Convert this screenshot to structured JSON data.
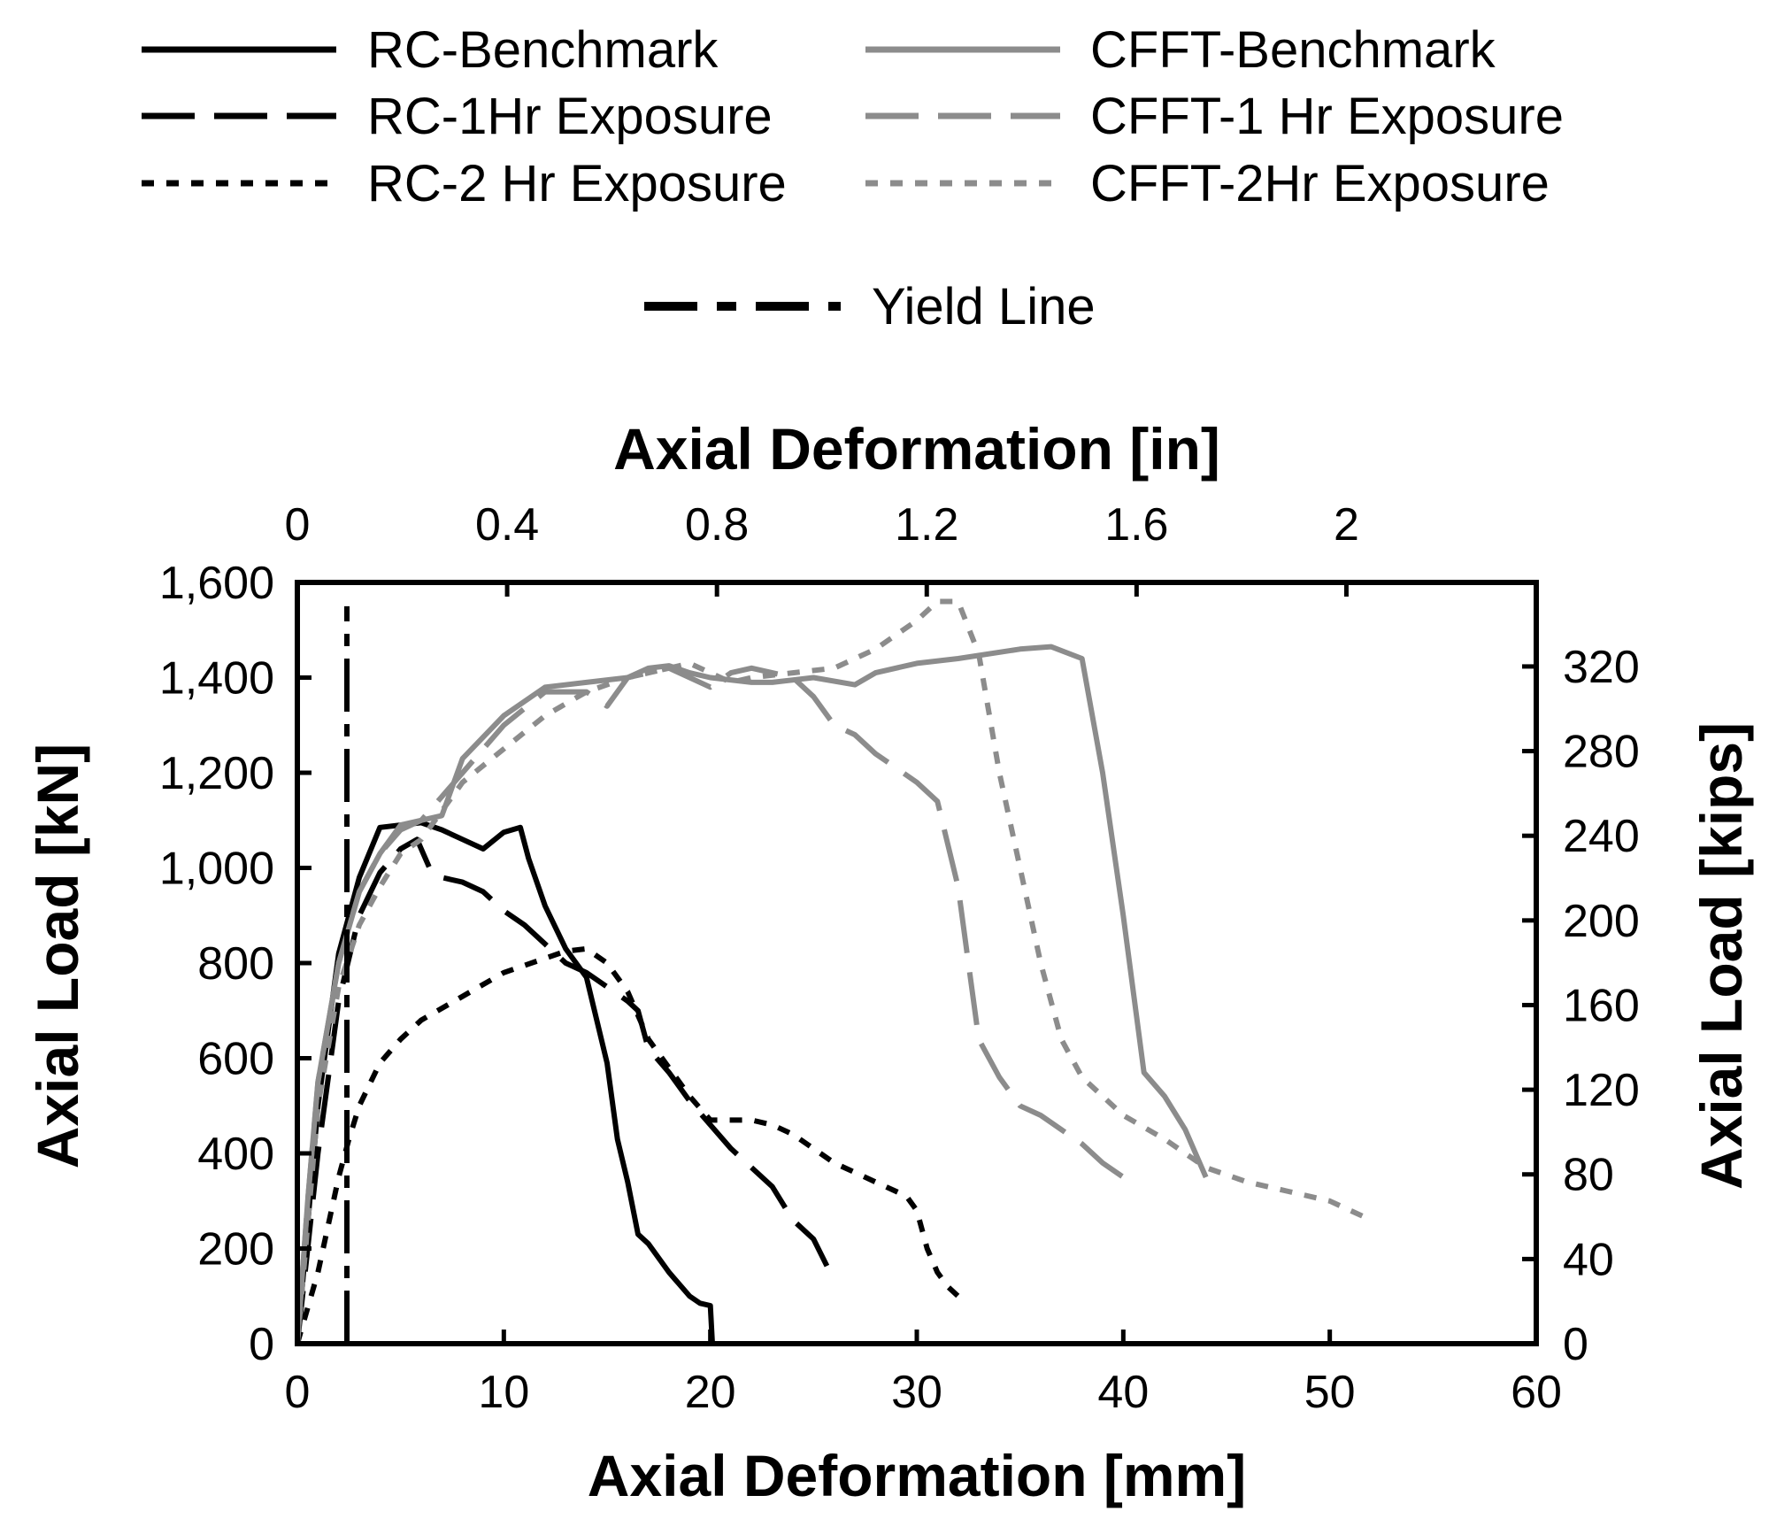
{
  "chart_data": {
    "type": "line",
    "xlabel": "Axial Deformation [mm]",
    "ylabel": "Axial Load [kN]",
    "x2label": "Axial Deformation [in]",
    "y2label": "Axial Load [kips]",
    "xlim": [
      0,
      60
    ],
    "ylim": [
      0,
      1600
    ],
    "x2lim": [
      0,
      2.362
    ],
    "y2lim": [
      0,
      359.7
    ],
    "xticks": [
      0,
      10,
      20,
      30,
      40,
      50,
      60
    ],
    "xtick_labels": [
      "0",
      "10",
      "20",
      "30",
      "40",
      "50",
      "60"
    ],
    "yticks": [
      0,
      200,
      400,
      600,
      800,
      1000,
      1200,
      1400,
      1600
    ],
    "ytick_labels": [
      "0",
      "200",
      "400",
      "600",
      "800",
      "1,000",
      "1,200",
      "1,400",
      "1,600"
    ],
    "x2ticks": [
      0,
      0.4,
      0.8,
      1.2,
      1.6,
      2
    ],
    "x2tick_labels": [
      "0",
      "0.4",
      "0.8",
      "1.2",
      "1.6",
      "2"
    ],
    "y2ticks": [
      0,
      40,
      80,
      120,
      160,
      200,
      240,
      280,
      320
    ],
    "y2tick_labels": [
      "0",
      "40",
      "80",
      "120",
      "160",
      "200",
      "240",
      "280",
      "320"
    ],
    "colors": {
      "rc": "#000000",
      "cfft": "#8c8c8c"
    },
    "series": [
      {
        "name": "RC-Benchmark",
        "color": "rc",
        "style": "solid",
        "x": [
          0,
          0.5,
          1,
          2,
          3,
          4,
          6,
          7,
          8,
          9,
          10,
          10.8,
          11.2,
          12,
          13,
          14,
          15,
          15.5,
          16,
          16.5,
          17,
          18,
          19,
          19.5,
          20,
          20.1
        ],
        "y": [
          0,
          250,
          500,
          820,
          980,
          1085,
          1095,
          1080,
          1060,
          1040,
          1075,
          1085,
          1020,
          920,
          830,
          770,
          590,
          430,
          340,
          230,
          210,
          150,
          100,
          85,
          80,
          0
        ]
      },
      {
        "name": "RC-1Hr Exposure",
        "color": "rc",
        "style": "longdash",
        "x": [
          0,
          0.5,
          1,
          2,
          3,
          4,
          5,
          5.8,
          6.5,
          7,
          8,
          9,
          10,
          11,
          12,
          13,
          14,
          15,
          16,
          16.5,
          17,
          18,
          19,
          20,
          21,
          22,
          23,
          24,
          25,
          25.8
        ],
        "y": [
          0,
          200,
          400,
          720,
          900,
          990,
          1040,
          1060,
          990,
          980,
          970,
          950,
          910,
          880,
          840,
          800,
          780,
          750,
          720,
          700,
          620,
          570,
          510,
          460,
          410,
          370,
          330,
          260,
          220,
          150
        ]
      },
      {
        "name": "RC-2 Hr Exposure",
        "color": "rc",
        "style": "shortdash",
        "x": [
          0,
          1,
          1.5,
          2,
          2.5,
          3,
          4,
          5,
          6,
          8,
          10,
          12,
          13,
          14,
          15,
          16,
          17,
          18,
          19,
          20,
          22,
          23,
          24,
          25,
          26,
          27,
          28,
          29,
          29.5,
          30,
          30.5,
          31,
          31.5,
          32
        ],
        "y": [
          0,
          150,
          250,
          350,
          430,
          500,
          590,
          640,
          680,
          730,
          780,
          810,
          825,
          830,
          800,
          740,
          640,
          580,
          520,
          470,
          470,
          460,
          440,
          410,
          380,
          360,
          340,
          320,
          310,
          280,
          200,
          150,
          120,
          100
        ]
      },
      {
        "name": "CFFT-Benchmark",
        "color": "cfft",
        "style": "solid",
        "x": [
          0,
          0.5,
          1,
          2,
          3,
          4,
          5,
          7,
          8,
          10,
          12,
          14,
          16,
          17,
          18,
          19,
          20,
          22,
          23,
          25,
          27,
          28,
          30,
          32,
          35,
          36.5,
          38,
          39,
          40,
          41,
          42,
          43,
          44
        ],
        "y": [
          0,
          300,
          550,
          800,
          950,
          1030,
          1090,
          1110,
          1230,
          1320,
          1380,
          1390,
          1400,
          1420,
          1425,
          1410,
          1400,
          1390,
          1390,
          1400,
          1385,
          1410,
          1430,
          1440,
          1460,
          1465,
          1440,
          1200,
          900,
          570,
          520,
          450,
          350
        ]
      },
      {
        "name": "CFFT-1 Hr Exposure",
        "color": "cfft",
        "style": "longdash",
        "x": [
          0,
          0.5,
          1,
          2,
          3,
          4,
          5,
          6,
          8,
          10,
          12,
          14,
          15,
          16,
          17,
          18,
          20,
          21,
          22,
          23,
          24,
          25,
          26,
          27,
          28,
          29,
          30,
          31,
          32,
          32.5,
          33,
          34,
          35,
          36,
          37,
          38,
          39,
          40,
          40.5
        ],
        "y": [
          0,
          300,
          550,
          800,
          950,
          1030,
          1080,
          1100,
          1200,
          1300,
          1370,
          1370,
          1340,
          1400,
          1410,
          1420,
          1380,
          1410,
          1420,
          1410,
          1400,
          1360,
          1300,
          1280,
          1240,
          1210,
          1180,
          1140,
          960,
          800,
          640,
          560,
          500,
          480,
          450,
          420,
          380,
          350,
          340
        ]
      },
      {
        "name": "CFFT-2Hr Exposure",
        "color": "cfft",
        "style": "shortdash",
        "x": [
          0,
          0.5,
          1,
          2,
          3,
          4,
          5,
          6,
          8,
          10,
          12,
          14,
          16,
          18,
          19,
          20,
          21,
          22,
          24,
          26,
          28,
          30,
          31,
          32,
          33,
          34,
          35,
          36,
          37,
          38,
          40,
          42,
          44,
          46,
          48,
          50,
          52
        ],
        "y": [
          0,
          250,
          500,
          750,
          880,
          960,
          1030,
          1060,
          1180,
          1250,
          1320,
          1370,
          1400,
          1420,
          1430,
          1410,
          1390,
          1400,
          1410,
          1420,
          1460,
          1520,
          1560,
          1560,
          1450,
          1200,
          1000,
          800,
          640,
          560,
          480,
          430,
          370,
          340,
          320,
          300,
          260
        ]
      },
      {
        "name": "Yield Line",
        "color": "rc",
        "style": "dashdot",
        "x": [
          2.4,
          2.4
        ],
        "y": [
          0,
          1550
        ]
      }
    ],
    "legend": {
      "position": "top",
      "rows": [
        [
          "RC-Benchmark",
          "CFFT-Benchmark"
        ],
        [
          "RC-1Hr Exposure",
          "CFFT-1 Hr Exposure"
        ],
        [
          "RC-2 Hr Exposure",
          "CFFT-2Hr Exposure"
        ],
        [
          "Yield Line"
        ]
      ]
    }
  }
}
